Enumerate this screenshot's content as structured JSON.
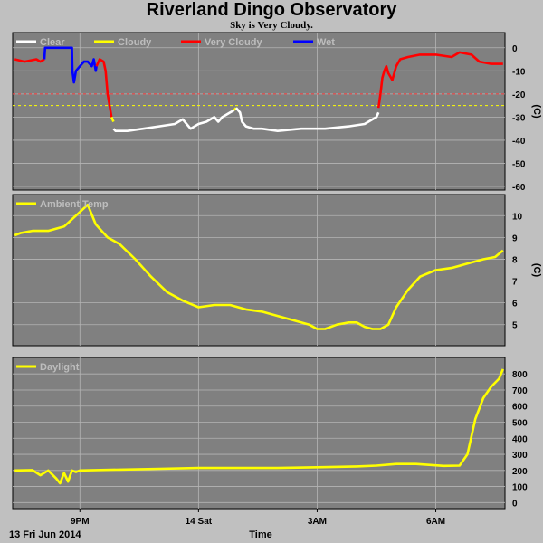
{
  "page": {
    "title": "Riverland Dingo Observatory",
    "subtitle": "Sky is Very Cloudy."
  },
  "footer": {
    "date_label": "13 Fri Jun 2014",
    "time_axis_label": "Time"
  },
  "colors": {
    "background": "#c0c0c0",
    "plot_bg": "#808080",
    "grid": "#b4b4b4",
    "clear": "#ffffff",
    "cloudy": "#ffff00",
    "very_cloudy": "#ff0000",
    "wet": "#0000ff",
    "threshold_red": "#ff4040",
    "threshold_yellow": "#ffff00"
  },
  "chart_data": [
    {
      "type": "line",
      "unit": "(C)",
      "yticks": [
        0,
        -10,
        -20,
        -30,
        -40,
        -50,
        -60
      ],
      "ylim": [
        -60,
        5
      ],
      "xlim": [
        19.3,
        31.75
      ],
      "thresholds": [
        -20,
        -25
      ],
      "legend": [
        "Clear",
        "Cloudy",
        "Very Cloudy",
        "Wet"
      ],
      "series": [
        {
          "name": "Very Cloudy",
          "color": "#ff0000",
          "x": [
            19.35,
            19.6,
            19.9,
            20.0,
            20.1
          ],
          "values": [
            -5,
            -6,
            -5,
            -6,
            -5
          ]
        },
        {
          "name": "Wet",
          "color": "#0000ff",
          "x": [
            20.1,
            20.12,
            20.3,
            20.6,
            20.8,
            20.81,
            20.85,
            20.9,
            21.0,
            21.1,
            21.2,
            21.3,
            21.35,
            21.4,
            21.42
          ],
          "values": [
            -5,
            0,
            0,
            0,
            0,
            -10,
            -15,
            -10,
            -8,
            -6,
            -6,
            -8,
            -5,
            -10,
            -8
          ]
        },
        {
          "name": "Very Cloudy",
          "color": "#ff0000",
          "x": [
            21.42,
            21.5,
            21.6,
            21.65,
            21.7,
            21.75,
            21.8
          ],
          "values": [
            -8,
            -5,
            -6,
            -10,
            -20,
            -25,
            -30
          ]
        },
        {
          "name": "Cloudy",
          "color": "#ffff00",
          "x": [
            21.8,
            21.85
          ],
          "values": [
            -30,
            -32
          ]
        },
        {
          "name": "Clear",
          "color": "#ffffff",
          "x": [
            21.85,
            21.9,
            22.2,
            22.6,
            23.0,
            23.4,
            23.6,
            23.8,
            24.0,
            24.2,
            24.3,
            24.4,
            24.5,
            24.6,
            24.8,
            24.9
          ],
          "values": [
            -35,
            -36,
            -36,
            -35,
            -34,
            -33,
            -31,
            -35,
            -33,
            -32,
            -31,
            -30,
            -32,
            -30,
            -28,
            -27
          ]
        },
        {
          "name": "Cloudy",
          "color": "#ffff00",
          "x": [
            24.9,
            24.95
          ],
          "values": [
            -27,
            -26
          ]
        },
        {
          "name": "Clear",
          "color": "#ffffff",
          "x": [
            24.95,
            25.05,
            25.1,
            25.2,
            25.4,
            25.6,
            26.0,
            26.6,
            27.2,
            27.8,
            28.2,
            28.4,
            28.5,
            28.55
          ],
          "values": [
            -26,
            -28,
            -32,
            -34,
            -35,
            -35,
            -36,
            -35,
            -35,
            -34,
            -33,
            -31,
            -30,
            -28
          ]
        },
        {
          "name": "Very Cloudy",
          "color": "#ff0000",
          "x": [
            28.55,
            28.6,
            28.65,
            28.7,
            28.75,
            28.8,
            28.9,
            29.0,
            29.1,
            29.3,
            29.6,
            30.0,
            30.4,
            30.6,
            30.9,
            31.1,
            31.4,
            31.7
          ],
          "values": [
            -26,
            -20,
            -13,
            -10,
            -8,
            -11,
            -14,
            -8,
            -5,
            -4,
            -3,
            -3,
            -4,
            -2,
            -3,
            -6,
            -7,
            -7
          ]
        }
      ]
    },
    {
      "type": "line",
      "unit": "(C)",
      "yticks": [
        5,
        6,
        7,
        8,
        9,
        10
      ],
      "ylim": [
        4.2,
        10.8
      ],
      "xlim": [
        19.3,
        31.75
      ],
      "legend": [
        "Ambient Temp"
      ],
      "series": [
        {
          "name": "Ambient Temp",
          "color": "#ffff00",
          "x": [
            19.35,
            19.5,
            19.8,
            20.2,
            20.6,
            20.9,
            21.2,
            21.4,
            21.7,
            22.0,
            22.4,
            22.8,
            23.2,
            23.6,
            24.0,
            24.4,
            24.8,
            25.2,
            25.6,
            26.0,
            26.4,
            26.8,
            27.0,
            27.2,
            27.5,
            27.8,
            28.0,
            28.2,
            28.4,
            28.6,
            28.8,
            29.0,
            29.3,
            29.6,
            30.0,
            30.4,
            30.8,
            31.2,
            31.5,
            31.7
          ],
          "values": [
            9.1,
            9.2,
            9.3,
            9.3,
            9.5,
            10.0,
            10.5,
            9.6,
            9.0,
            8.7,
            8.0,
            7.2,
            6.5,
            6.1,
            5.8,
            5.9,
            5.9,
            5.7,
            5.6,
            5.4,
            5.2,
            5.0,
            4.8,
            4.8,
            5.0,
            5.1,
            5.1,
            4.9,
            4.8,
            4.8,
            5.0,
            5.8,
            6.6,
            7.2,
            7.5,
            7.6,
            7.8,
            8.0,
            8.1,
            8.4
          ]
        }
      ]
    },
    {
      "type": "line",
      "yticks": [
        0,
        100,
        200,
        300,
        400,
        500,
        600,
        700,
        800
      ],
      "ylim": [
        -15,
        880
      ],
      "xlim": [
        19.3,
        31.75
      ],
      "legend": [
        "Daylight"
      ],
      "series": [
        {
          "name": "Daylight",
          "color": "#ffff00",
          "x": [
            19.35,
            19.8,
            20.0,
            20.2,
            20.4,
            20.5,
            20.6,
            20.7,
            20.8,
            20.9,
            21.0,
            22.0,
            23.0,
            24.0,
            25.0,
            26.0,
            27.0,
            28.0,
            28.5,
            29.0,
            29.5,
            30.2,
            30.6,
            30.8,
            31.0,
            31.2,
            31.4,
            31.6,
            31.7
          ],
          "values": [
            200,
            202,
            170,
            200,
            150,
            120,
            185,
            130,
            200,
            190,
            200,
            205,
            210,
            215,
            215,
            215,
            220,
            225,
            230,
            240,
            240,
            228,
            230,
            300,
            520,
            650,
            720,
            770,
            830
          ]
        }
      ]
    }
  ],
  "x_axis": {
    "ticks": [
      {
        "x": 21,
        "label": "9PM"
      },
      {
        "x": 24,
        "label": "14 Sat"
      },
      {
        "x": 27,
        "label": "3AM"
      },
      {
        "x": 30,
        "label": "6AM"
      }
    ],
    "grid_x": [
      21,
      24,
      27,
      30
    ]
  }
}
